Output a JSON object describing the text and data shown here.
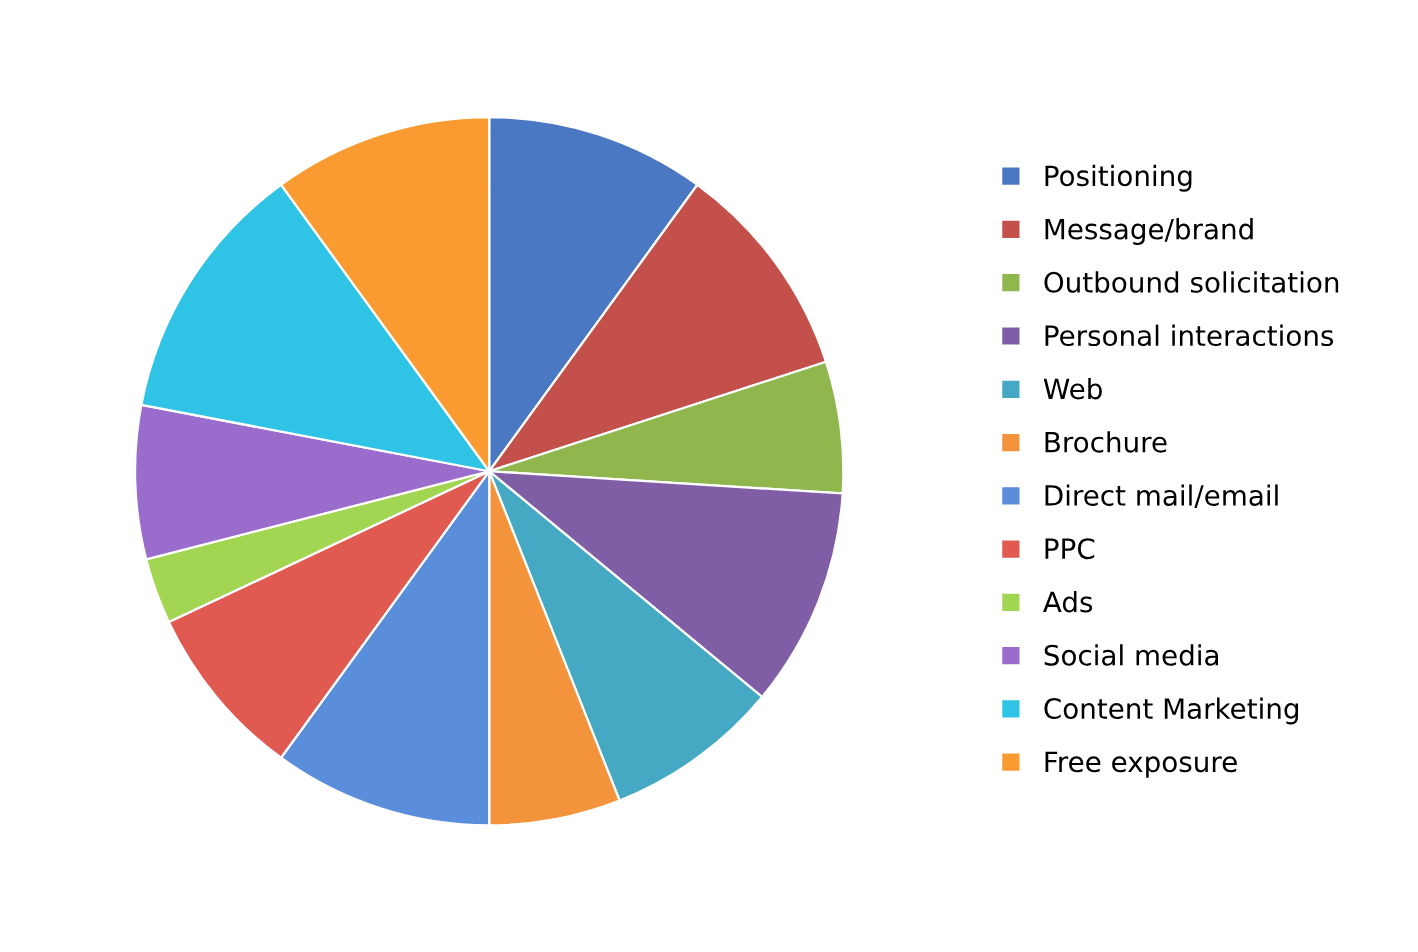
{
  "chart_data": {
    "type": "pie",
    "categories": [
      "Positioning",
      "Message/brand",
      "Outbound solicitation",
      "Personal interactions",
      "Web",
      "Brochure",
      "Direct mail/email",
      "PPC",
      "Ads",
      "Social media",
      "Content Marketing",
      "Free exposure"
    ],
    "values": [
      10,
      10,
      6,
      10,
      8,
      6,
      10,
      8,
      3,
      7,
      12,
      10
    ],
    "colors": [
      "#4a78c2",
      "#c4504c",
      "#8fb74e",
      "#7f5ea6",
      "#45a9c4",
      "#f3933c",
      "#5a8edb",
      "#e05a52",
      "#a2d552",
      "#9a6ccb",
      "#2fc3e6",
      "#f99b30"
    ],
    "legend": "right"
  }
}
